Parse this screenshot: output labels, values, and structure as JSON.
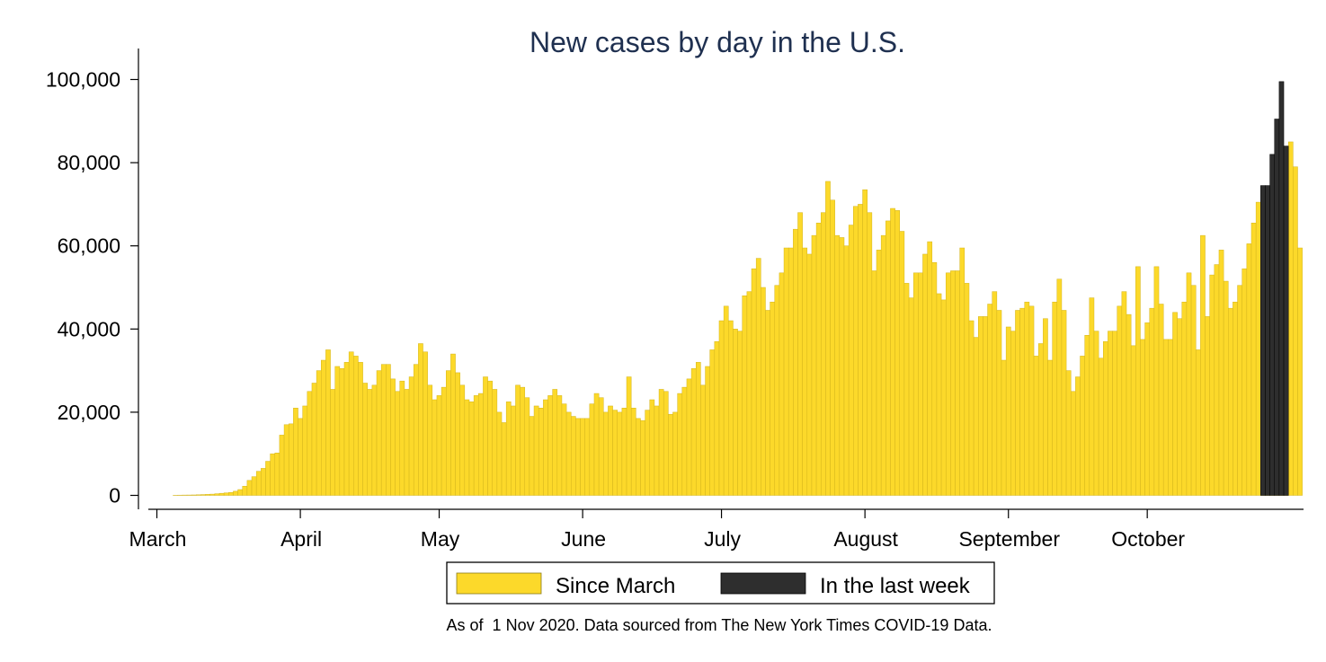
{
  "chart_data": {
    "type": "bar",
    "title": "New cases by day in the U.S.",
    "xlabel": "",
    "ylabel": "",
    "ylim": [
      0,
      104000
    ],
    "x_start_date": "2020-03-01",
    "y_ticks": [
      0,
      20000,
      40000,
      60000,
      80000,
      100000
    ],
    "y_tick_labels": [
      "0",
      "20,000",
      "40,000",
      "60,000",
      "80,000",
      "100,000"
    ],
    "x_ticks": [
      {
        "label": "March",
        "date": "2020-03-01"
      },
      {
        "label": "April",
        "date": "2020-04-01"
      },
      {
        "label": "May",
        "date": "2020-05-01"
      },
      {
        "label": "June",
        "date": "2020-06-01"
      },
      {
        "label": "July",
        "date": "2020-07-01"
      },
      {
        "label": "August",
        "date": "2020-08-01"
      },
      {
        "label": "September",
        "date": "2020-09-01"
      },
      {
        "label": "October",
        "date": "2020-10-01"
      }
    ],
    "legend": {
      "placement": "bottom"
    },
    "series": [
      {
        "name": "Since March",
        "color": "#fcd92a",
        "start_date": "2020-03-05",
        "values": [
          40,
          60,
          80,
          90,
          110,
          150,
          200,
          250,
          300,
          400,
          500,
          600,
          700,
          1000,
          1400,
          2200,
          3600,
          4500,
          5800,
          6500,
          8200,
          10000,
          10200,
          14500,
          17000,
          17200,
          21000,
          18500,
          21500,
          25000,
          27000,
          30000,
          32500,
          35000,
          25500,
          31000,
          30500,
          32000,
          34500,
          33500,
          32000,
          27000,
          25500,
          26500,
          30000,
          31500,
          31500,
          28000,
          25000,
          27500,
          25500,
          28500,
          31500,
          36500,
          34500,
          26500,
          23000,
          24000,
          26000,
          30000,
          34000,
          29500,
          26500,
          23000,
          22500,
          24000,
          24500,
          28500,
          27500,
          25500,
          20000,
          17500,
          22500,
          21500,
          26500,
          26000,
          23500,
          19000,
          21500,
          21000,
          23000,
          24000,
          25500,
          24000,
          22000,
          20000,
          19000,
          18500,
          18500,
          18500,
          22000,
          24500,
          23500,
          20000,
          21500,
          20500,
          20000,
          21000,
          28500,
          21000,
          18500,
          18000,
          20500,
          23000,
          21500,
          25500,
          25000,
          19500,
          20000,
          24500,
          26000,
          28000,
          30500,
          32000,
          26500,
          31000,
          35000,
          37000,
          42000,
          45500,
          42000,
          40000,
          39500,
          48000,
          49000,
          54500,
          57000,
          50000,
          44500,
          46500,
          50500,
          53500,
          59500,
          59500,
          64000,
          68000,
          59500,
          58000,
          62500,
          65500,
          68000,
          75500,
          71000,
          62500,
          62000,
          60000,
          65000,
          69500,
          70000,
          73500,
          68000,
          54000,
          59000,
          62500,
          66000,
          69000,
          68500,
          63500,
          51000,
          47500,
          53500,
          53500,
          58000,
          61000,
          56000,
          48500,
          47000,
          53500,
          54000,
          54000,
          59500,
          51000,
          42000,
          38000,
          43000,
          43000,
          46000,
          49000,
          44500,
          32500,
          40500,
          39500,
          44500,
          45000,
          46500,
          45500,
          33500,
          36500,
          42500,
          32500,
          46500,
          52000,
          44500,
          30000,
          25000,
          28500,
          33500,
          38500,
          47500,
          39500,
          33000,
          37000,
          39500,
          39500,
          45500,
          49000,
          43500,
          36000,
          55000,
          37500,
          41500,
          45000,
          55000,
          46000,
          37500,
          37500,
          44000,
          42500,
          46500,
          53500,
          50500,
          35000,
          62500,
          43000,
          53000,
          55500,
          59000,
          51500,
          45000,
          46500,
          50500,
          54500,
          60500,
          65500,
          70500,
          53000,
          48000,
          65000,
          61000,
          64000,
          75000,
          85000,
          79000,
          59500
        ]
      },
      {
        "name": "In the last week",
        "color": "#2e2e2e",
        "start_date": "2020-10-26",
        "values": [
          74500,
          74500,
          82000,
          90500,
          99500,
          84000
        ]
      }
    ]
  },
  "footer": {
    "note": "As of  1 Nov 2020. Data sourced from The New York Times COVID-19 Data."
  }
}
